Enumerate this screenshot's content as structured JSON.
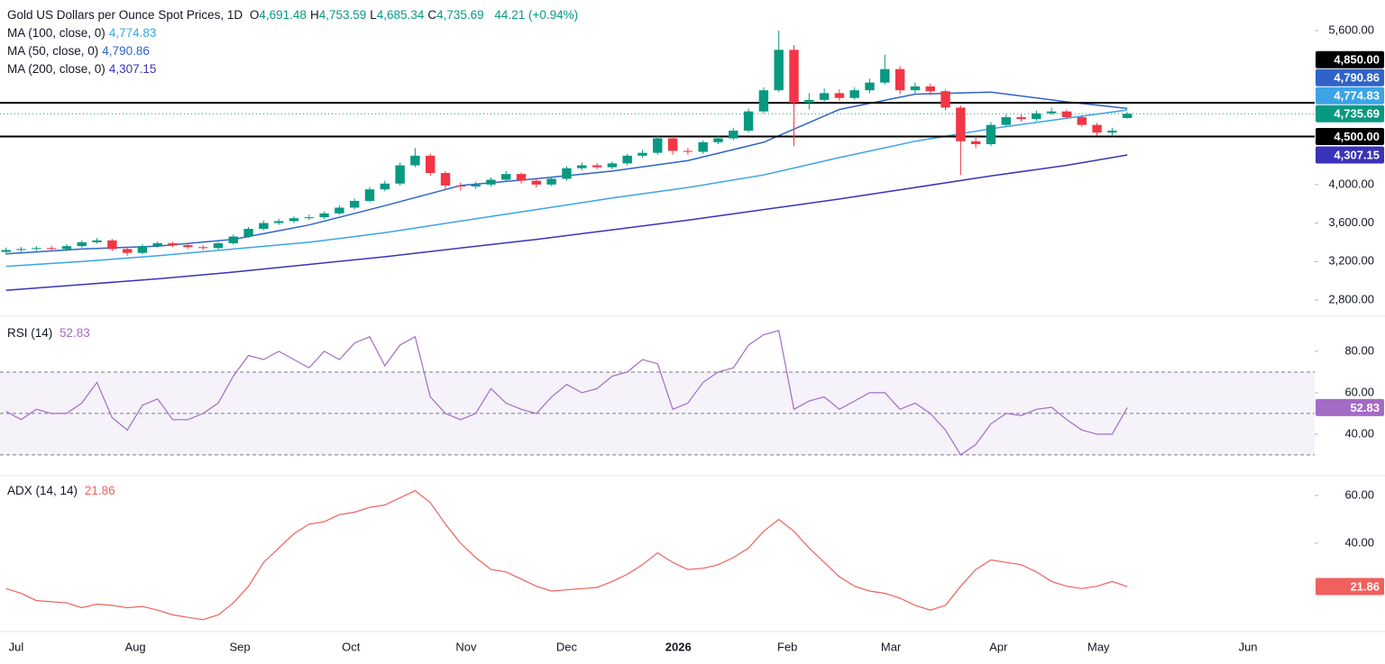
{
  "chart_data": [
    {
      "type": "candlestick",
      "title": "Gold US Dollars per Ounce Spot Prices, 1D",
      "header": [
        {
          "key": "O",
          "text": "4,691.48"
        },
        {
          "key": "H",
          "text": "4,753.59"
        },
        {
          "key": "L",
          "text": "4,685.34"
        },
        {
          "key": "C",
          "text": "4,735.69"
        }
      ],
      "change": "44.21 (+0.94%)",
      "up_color": "#089981",
      "down_color": "#f23645",
      "x": [
        -2,
        1,
        4,
        7,
        10,
        13,
        16,
        19,
        22,
        25,
        28,
        31,
        34,
        37,
        40,
        43,
        46,
        49,
        52,
        55,
        58,
        61,
        64,
        67,
        70,
        73,
        76,
        79,
        82,
        85,
        88,
        91,
        94,
        97,
        100,
        103,
        106,
        109,
        112,
        115,
        118,
        121,
        124,
        127,
        130,
        133,
        136,
        139,
        142,
        145,
        148,
        151,
        154,
        157,
        160,
        163,
        166,
        169,
        172,
        175,
        178,
        181,
        184,
        187,
        190,
        193,
        196,
        199,
        202,
        205,
        208,
        211,
        214,
        217,
        220
      ],
      "open": [
        3300,
        3320,
        3330,
        3340,
        3330,
        3360,
        3400,
        3420,
        3330,
        3290,
        3360,
        3390,
        3370,
        3350,
        3340,
        3390,
        3460,
        3540,
        3600,
        3620,
        3650,
        3660,
        3700,
        3760,
        3830,
        3950,
        4010,
        4200,
        4300,
        4120,
        3990,
        3980,
        4000,
        4050,
        4110,
        4040,
        4000,
        4060,
        4170,
        4200,
        4180,
        4220,
        4300,
        4330,
        4480,
        4350,
        4340,
        4440,
        4480,
        4560,
        4760,
        4980,
        5400,
        4850,
        4880,
        4950,
        4900,
        4980,
        5060,
        5200,
        4980,
        5020,
        4970,
        4800,
        4450,
        4420,
        4620,
        4700,
        4680,
        4740,
        4760,
        4700,
        4620,
        4540,
        4691.48
      ],
      "high": [
        3345,
        3350,
        3360,
        3365,
        3380,
        3420,
        3445,
        3435,
        3345,
        3380,
        3410,
        3405,
        3385,
        3370,
        3405,
        3480,
        3560,
        3625,
        3645,
        3670,
        3690,
        3720,
        3785,
        3855,
        3975,
        4040,
        4230,
        4380,
        4320,
        4140,
        4020,
        4030,
        4075,
        4140,
        4125,
        4060,
        4080,
        4190,
        4230,
        4225,
        4240,
        4320,
        4360,
        4510,
        4500,
        4380,
        4460,
        4510,
        4590,
        4790,
        5010,
        5600,
        5450,
        4950,
        5000,
        4990,
        5010,
        5100,
        5350,
        5230,
        5060,
        5050,
        4990,
        4820,
        4500,
        4650,
        4730,
        4730,
        4770,
        4800,
        4780,
        4720,
        4640,
        4590,
        4753.59
      ],
      "low": [
        3275,
        3300,
        3310,
        3310,
        3310,
        3345,
        3385,
        3310,
        3260,
        3275,
        3345,
        3350,
        3330,
        3320,
        3325,
        3375,
        3445,
        3525,
        3580,
        3600,
        3630,
        3640,
        3685,
        3740,
        3815,
        3930,
        3990,
        4180,
        4090,
        3950,
        3940,
        3955,
        3980,
        4030,
        4010,
        3970,
        3985,
        4040,
        4150,
        4160,
        4160,
        4200,
        4280,
        4310,
        4310,
        4310,
        4320,
        4420,
        4460,
        4540,
        4740,
        4960,
        4400,
        4780,
        4850,
        4870,
        4880,
        4950,
        5040,
        4940,
        4950,
        4930,
        4770,
        4100,
        4380,
        4400,
        4600,
        4650,
        4660,
        4720,
        4680,
        4600,
        4510,
        4500,
        4685.34
      ],
      "close": [
        3320,
        3330,
        3340,
        3330,
        3360,
        3400,
        3420,
        3330,
        3290,
        3360,
        3390,
        3370,
        3350,
        3340,
        3390,
        3460,
        3540,
        3600,
        3620,
        3650,
        3660,
        3700,
        3760,
        3830,
        3950,
        4010,
        4200,
        4300,
        4120,
        3990,
        3980,
        4000,
        4050,
        4110,
        4040,
        4000,
        4060,
        4170,
        4200,
        4180,
        4220,
        4300,
        4330,
        4480,
        4350,
        4340,
        4440,
        4480,
        4560,
        4760,
        4980,
        5400,
        4850,
        4880,
        4950,
        4900,
        4980,
        5060,
        5200,
        4980,
        5020,
        4970,
        4800,
        4450,
        4420,
        4620,
        4700,
        4680,
        4740,
        4760,
        4700,
        4620,
        4540,
        4560,
        4735.69
      ],
      "close_label": "4,735.69",
      "xlim": [
        -3.2,
        257.1
      ],
      "xticks": [
        {
          "value": 0,
          "label": "Jul"
        },
        {
          "value": 23.6,
          "label": "Aug"
        },
        {
          "value": 44.3,
          "label": "Sep"
        },
        {
          "value": 66.3,
          "label": "Oct"
        },
        {
          "value": 89.1,
          "label": "Nov"
        },
        {
          "value": 109,
          "label": "Dec"
        },
        {
          "value": 131.1,
          "label": "2026"
        },
        {
          "value": 152.7,
          "label": "Feb"
        },
        {
          "value": 173.2,
          "label": "Mar"
        },
        {
          "value": 194.5,
          "label": "Apr"
        },
        {
          "value": 214.3,
          "label": "May"
        },
        {
          "value": 243.9,
          "label": "Jun"
        }
      ],
      "ylim": [
        2641,
        5918
      ],
      "yticks": [
        {
          "value": 5600,
          "label": "5,600.00"
        },
        {
          "value": 4000,
          "label": "4,000.00"
        },
        {
          "value": 3600,
          "label": "3,600.00"
        },
        {
          "value": 3200,
          "label": "3,200.00"
        },
        {
          "value": 2800,
          "label": "2,800.00"
        }
      ],
      "series": [
        {
          "name": "MA (100, close, 0)",
          "color": "#3ba4e6",
          "value_label": "4,774.83",
          "x": [
            -2,
            13,
            28,
            43,
            58,
            73,
            88,
            103,
            118,
            133,
            148,
            163,
            178,
            193,
            208,
            220
          ],
          "values": [
            3150,
            3200,
            3260,
            3330,
            3400,
            3500,
            3620,
            3740,
            3860,
            3970,
            4100,
            4280,
            4450,
            4580,
            4690,
            4774.83
          ]
        },
        {
          "name": "MA (50, close, 0)",
          "color": "#2f63c8",
          "value_label": "4,790.86",
          "x": [
            -2,
            13,
            28,
            43,
            58,
            73,
            88,
            103,
            118,
            133,
            148,
            163,
            178,
            193,
            208,
            220
          ],
          "values": [
            3280,
            3330,
            3360,
            3430,
            3580,
            3780,
            3990,
            4060,
            4140,
            4250,
            4440,
            4780,
            4940,
            4960,
            4860,
            4790.86
          ]
        },
        {
          "name": "MA (200, close, 0)",
          "color": "#3a32b8",
          "value_label": "4,307.15",
          "x": [
            -2,
            13,
            28,
            43,
            58,
            73,
            88,
            103,
            118,
            133,
            148,
            163,
            178,
            193,
            208,
            220
          ],
          "values": [
            2900,
            2960,
            3020,
            3090,
            3170,
            3250,
            3340,
            3430,
            3530,
            3630,
            3740,
            3850,
            3970,
            4090,
            4200,
            4307.15
          ]
        }
      ],
      "hlines": [
        {
          "value": 4850,
          "label": "4,850.00",
          "color": "#000000"
        },
        {
          "value": 4500,
          "label": "4,500.00",
          "color": "#000000"
        }
      ]
    },
    {
      "type": "line",
      "name": "RSI (14)",
      "color": "#a36bc6",
      "x": [
        -2,
        1,
        4,
        7,
        10,
        13,
        16,
        19,
        22,
        25,
        28,
        31,
        34,
        37,
        40,
        43,
        46,
        49,
        52,
        55,
        58,
        61,
        64,
        67,
        70,
        73,
        76,
        79,
        82,
        85,
        88,
        91,
        94,
        97,
        100,
        103,
        106,
        109,
        112,
        115,
        118,
        121,
        124,
        127,
        130,
        133,
        136,
        139,
        142,
        145,
        148,
        151,
        154,
        157,
        160,
        163,
        166,
        169,
        172,
        175,
        178,
        181,
        184,
        187,
        190,
        193,
        196,
        199,
        202,
        205,
        208,
        211,
        214,
        217,
        220
      ],
      "values": [
        51,
        47,
        52,
        50,
        50,
        55,
        65,
        48,
        42,
        54,
        57,
        47,
        47,
        50,
        55,
        68,
        78,
        76,
        80,
        76,
        72,
        80,
        76,
        84,
        87,
        73,
        83,
        87,
        58,
        50,
        47,
        50,
        62,
        55,
        52,
        50,
        58,
        64,
        60,
        62,
        68,
        70,
        76,
        74,
        52,
        55,
        65,
        70,
        72,
        83,
        88,
        90,
        52,
        56,
        58,
        52,
        56,
        60,
        60,
        52,
        55,
        50,
        42,
        30,
        35,
        45,
        50,
        49,
        52,
        53,
        47,
        42,
        40,
        40,
        52.83
      ],
      "ylim": [
        20.4,
        96.5
      ],
      "yticks": [
        {
          "value": 80,
          "label": "80.00"
        },
        {
          "value": 60,
          "label": "60.00"
        },
        {
          "value": 40,
          "label": "40.00"
        }
      ],
      "levels": [
        70,
        50,
        30
      ],
      "band": [
        30,
        70
      ]
    },
    {
      "type": "line",
      "name": "ADX (14, 14)",
      "color": "#f0605d",
      "x": [
        -2,
        1,
        4,
        7,
        10,
        13,
        16,
        19,
        22,
        25,
        28,
        31,
        34,
        37,
        40,
        43,
        46,
        49,
        52,
        55,
        58,
        61,
        64,
        67,
        70,
        73,
        76,
        79,
        82,
        85,
        88,
        91,
        94,
        97,
        100,
        103,
        106,
        109,
        112,
        115,
        118,
        121,
        124,
        127,
        130,
        133,
        136,
        139,
        142,
        145,
        148,
        151,
        154,
        157,
        160,
        163,
        166,
        169,
        172,
        175,
        178,
        181,
        184,
        187,
        190,
        193,
        196,
        199,
        202,
        205,
        208,
        211,
        214,
        217,
        220
      ],
      "values": [
        21,
        19,
        16,
        15.5,
        15,
        13,
        14.5,
        14,
        13,
        13.5,
        12,
        10,
        9,
        8,
        10,
        15,
        22,
        32,
        38,
        44,
        48,
        49,
        52,
        53,
        55,
        56,
        59,
        62,
        57,
        48,
        40,
        34,
        29,
        28,
        25,
        22,
        20,
        20.5,
        21,
        21.5,
        24,
        27,
        31,
        36,
        32,
        29,
        29.5,
        31,
        34,
        38,
        45,
        50,
        45,
        38,
        32,
        26,
        22,
        20,
        19,
        17,
        14,
        12,
        14,
        22,
        29,
        33,
        32,
        31,
        28,
        24,
        22,
        21,
        22,
        24,
        21.86
      ],
      "ylim": [
        3.4,
        67.9
      ],
      "yticks": [
        {
          "value": 60,
          "label": "60.00"
        },
        {
          "value": 40,
          "label": "40.00"
        }
      ]
    }
  ]
}
